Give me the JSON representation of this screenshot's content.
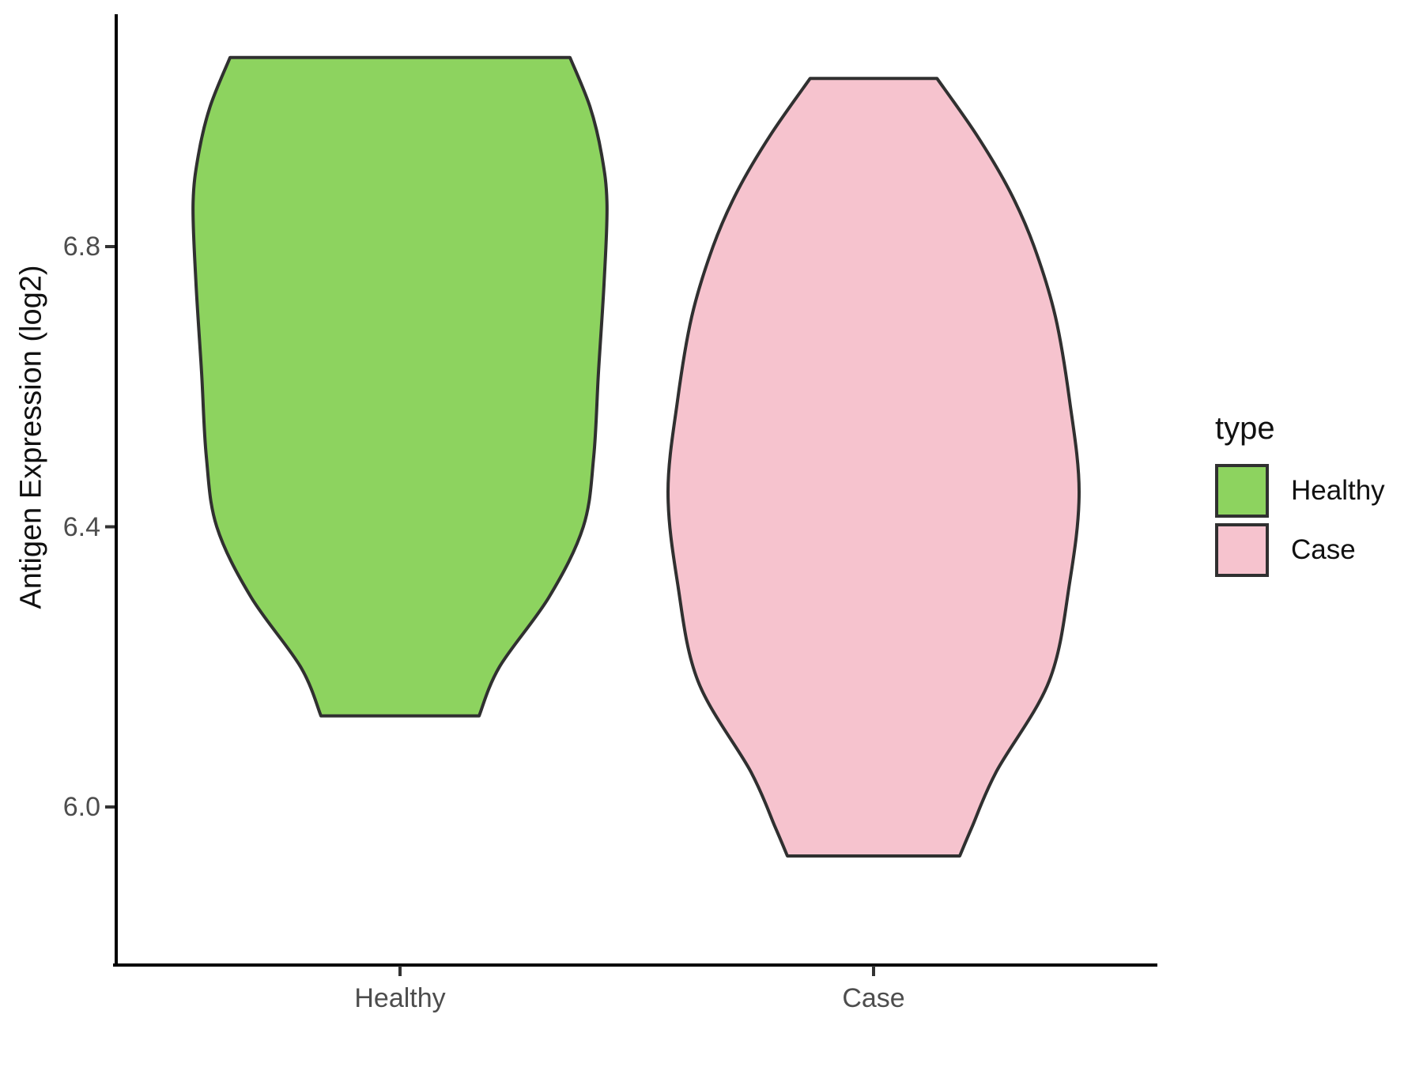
{
  "chart_data": {
    "type": "violin",
    "title": "",
    "xlabel": "",
    "ylabel": "Antigen Expression (log2)",
    "categories": [
      "Healthy",
      "Case"
    ],
    "y_ticks": [
      "6.0",
      "6.4",
      "6.8"
    ],
    "y_tick_values": [
      6.0,
      6.4,
      6.8
    ],
    "ylim": [
      5.77,
      7.13
    ],
    "grid": "off",
    "legend_position": "right",
    "legend": {
      "title": "type",
      "entries": [
        {
          "label": "Healthy",
          "color": "#8DD35F"
        },
        {
          "label": "Case",
          "color": "#F6C3CE"
        }
      ]
    },
    "style": {
      "outline_color": "#303030",
      "axis_color": "#000000",
      "tick_color": "#333333",
      "tick_label_color": "#4D4D4D"
    },
    "series": [
      {
        "name": "Healthy",
        "x": 1,
        "fill": "#8DD35F",
        "y_min": 6.13,
        "y_max": 7.07,
        "profile": [
          [
            7.07,
            0.359
          ],
          [
            7.0,
            0.401
          ],
          [
            6.93,
            0.426
          ],
          [
            6.86,
            0.437
          ],
          [
            6.75,
            0.431
          ],
          [
            6.62,
            0.419
          ],
          [
            6.5,
            0.409
          ],
          [
            6.4,
            0.387
          ],
          [
            6.3,
            0.315
          ],
          [
            6.2,
            0.21
          ],
          [
            6.13,
            0.167
          ]
        ]
      },
      {
        "name": "Case",
        "x": 2,
        "fill": "#F6C3CE",
        "y_min": 5.93,
        "y_max": 7.04,
        "profile": [
          [
            7.04,
            0.134
          ],
          [
            6.96,
            0.217
          ],
          [
            6.88,
            0.287
          ],
          [
            6.8,
            0.339
          ],
          [
            6.7,
            0.384
          ],
          [
            6.58,
            0.414
          ],
          [
            6.45,
            0.434
          ],
          [
            6.32,
            0.414
          ],
          [
            6.18,
            0.371
          ],
          [
            6.05,
            0.259
          ],
          [
            5.97,
            0.207
          ],
          [
            5.93,
            0.182
          ]
        ]
      }
    ]
  }
}
